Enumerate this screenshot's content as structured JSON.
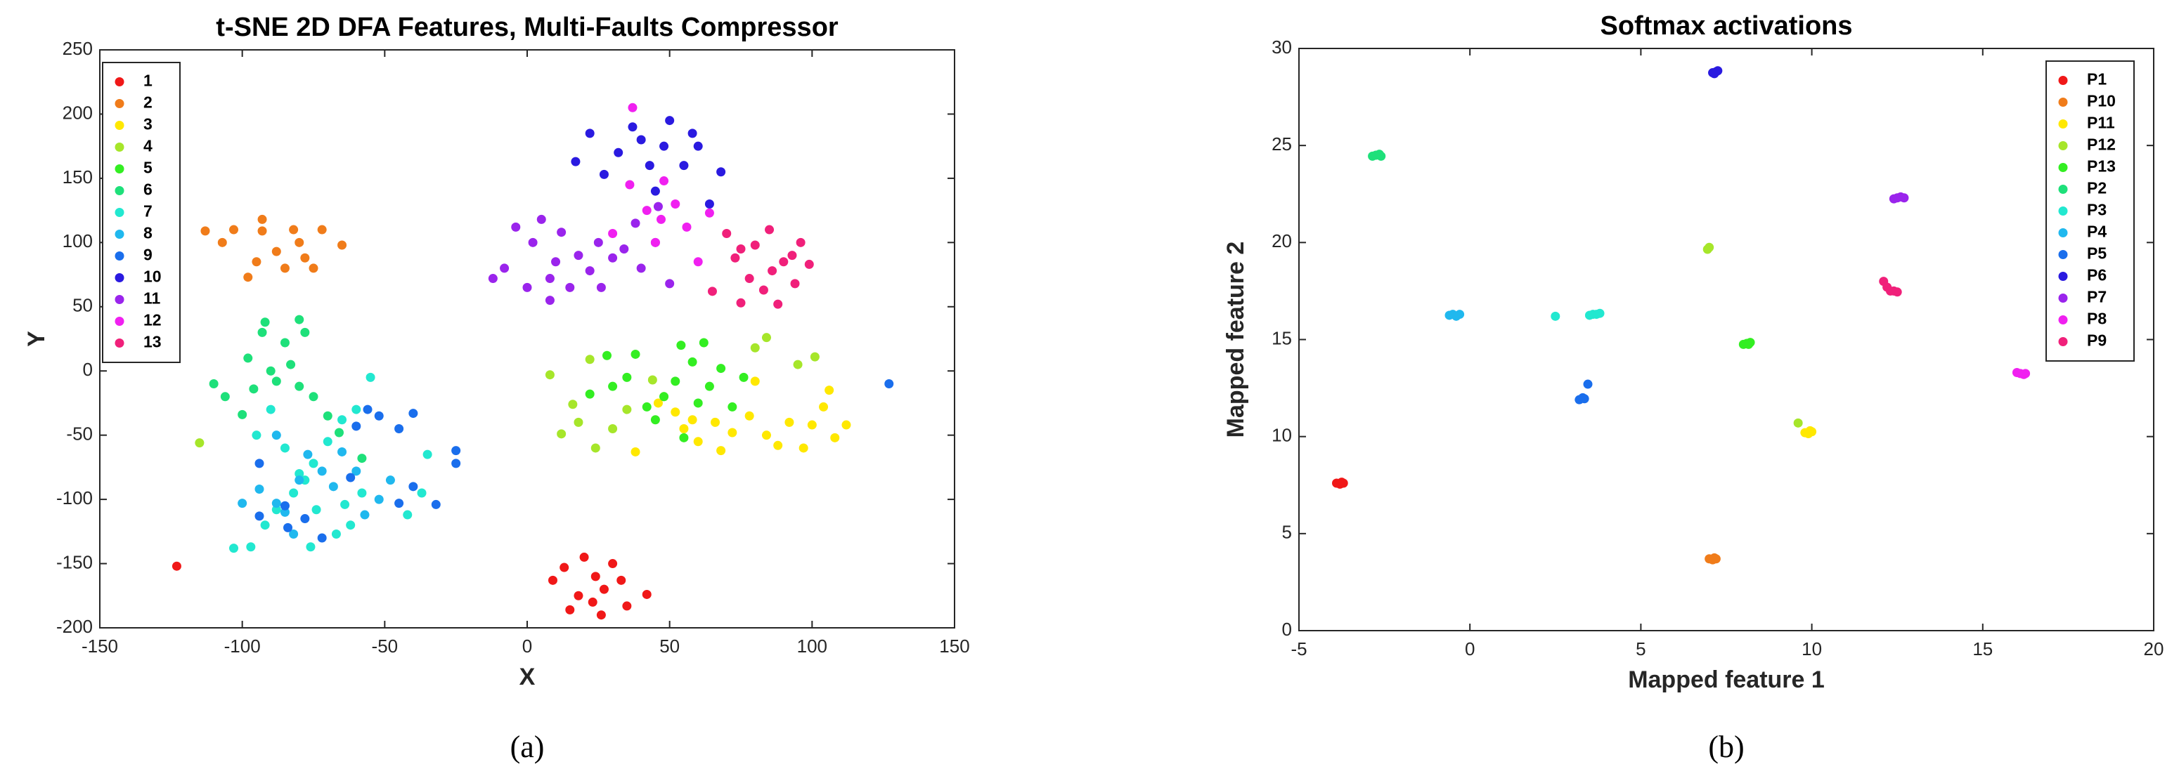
{
  "chart_data": [
    {
      "type": "scatter",
      "title": "t-SNE 2D DFA Features, Multi-Faults Compressor",
      "x_label": "X",
      "y_label": "Y",
      "caption": "(a)",
      "xlim": [
        -150,
        150
      ],
      "ylim": [
        -200,
        250
      ],
      "xticks": [
        -150,
        -100,
        -50,
        0,
        50,
        100,
        150
      ],
      "yticks": [
        -200,
        -150,
        -100,
        -50,
        0,
        50,
        100,
        150,
        200,
        250
      ],
      "legend": "upper left",
      "series": [
        {
          "name": "1",
          "color": "#f01818",
          "x": [
            -123,
            9,
            13,
            18,
            20,
            15,
            24,
            27,
            30,
            33,
            35,
            42,
            23,
            26
          ],
          "y": [
            -152,
            -163,
            -153,
            -175,
            -145,
            -186,
            -160,
            -170,
            -150,
            -163,
            -183,
            -174,
            -180,
            -190
          ]
        },
        {
          "name": "2",
          "color": "#f07c1a",
          "x": [
            -113,
            -107,
            -103,
            -98,
            -95,
            -93,
            -88,
            -85,
            -82,
            -80,
            -78,
            -75,
            -72,
            -65,
            -93
          ],
          "y": [
            109,
            100,
            110,
            73,
            85,
            118,
            93,
            80,
            110,
            100,
            88,
            80,
            110,
            98,
            109
          ]
        },
        {
          "name": "3",
          "color": "#ffe800",
          "x": [
            38,
            52,
            55,
            60,
            66,
            68,
            72,
            78,
            80,
            84,
            88,
            92,
            97,
            100,
            104,
            108,
            112,
            106,
            46,
            58
          ],
          "y": [
            -63,
            -32,
            -45,
            -55,
            -40,
            -62,
            -48,
            -35,
            -8,
            -50,
            -58,
            -40,
            -60,
            -42,
            -28,
            -52,
            -42,
            -15,
            -25,
            -38
          ]
        },
        {
          "name": "4",
          "color": "#a6e62a",
          "x": [
            -115,
            8,
            12,
            16,
            22,
            24,
            30,
            35,
            44,
            48,
            84,
            80,
            95,
            101,
            18
          ],
          "y": [
            -56,
            -3,
            -49,
            -26,
            9,
            -60,
            -45,
            -30,
            -7,
            -20,
            26,
            18,
            5,
            11,
            -40
          ]
        },
        {
          "name": "5",
          "color": "#33ee22",
          "x": [
            22,
            28,
            30,
            35,
            38,
            42,
            48,
            52,
            54,
            58,
            60,
            64,
            68,
            72,
            76,
            62,
            45,
            55
          ],
          "y": [
            -18,
            12,
            -12,
            -5,
            13,
            -28,
            -20,
            -8,
            20,
            7,
            -25,
            -12,
            2,
            -28,
            -5,
            22,
            -38,
            -52
          ]
        },
        {
          "name": "6",
          "color": "#1ee07a",
          "x": [
            -110,
            -106,
            -100,
            -96,
            -93,
            -92,
            -88,
            -85,
            -80,
            -78,
            -75,
            -70,
            -66,
            -58,
            -80,
            -90,
            -98,
            -83
          ],
          "y": [
            -10,
            -20,
            -34,
            -14,
            30,
            38,
            -8,
            22,
            40,
            30,
            -20,
            -35,
            -48,
            -68,
            -12,
            0,
            10,
            5
          ]
        },
        {
          "name": "7",
          "color": "#22e8d0",
          "x": [
            -55,
            -60,
            -65,
            -70,
            -75,
            -78,
            -82,
            -88,
            -92,
            -103,
            -97,
            -76,
            -67,
            -74,
            -64,
            -58,
            -80,
            -85,
            -90,
            -42,
            -37,
            -35,
            -62,
            -95
          ],
          "y": [
            -5,
            -30,
            -38,
            -55,
            -72,
            -85,
            -95,
            -108,
            -120,
            -138,
            -137,
            -137,
            -127,
            -108,
            -104,
            -95,
            -80,
            -60,
            -30,
            -112,
            -95,
            -65,
            -120,
            -50
          ]
        },
        {
          "name": "8",
          "color": "#20b8ee",
          "x": [
            -100,
            -94,
            -88,
            -85,
            -82,
            -80,
            -77,
            -72,
            -68,
            -65,
            -57,
            -52,
            -48,
            -88,
            -60
          ],
          "y": [
            -103,
            -92,
            -103,
            -110,
            -127,
            -85,
            -65,
            -78,
            -90,
            -63,
            -112,
            -100,
            -85,
            -50,
            -78
          ]
        },
        {
          "name": "9",
          "color": "#1a6eec",
          "x": [
            -94,
            -94,
            -84,
            -78,
            -60,
            -56,
            -52,
            -45,
            -40,
            -45,
            -40,
            -32,
            -25,
            -25,
            -85,
            -62,
            -72,
            127
          ],
          "y": [
            -72,
            -113,
            -122,
            -115,
            -43,
            -30,
            -35,
            -45,
            -33,
            -103,
            -90,
            -104,
            -62,
            -72,
            -105,
            -83,
            -130,
            -10
          ]
        },
        {
          "name": "10",
          "color": "#2a1ae0",
          "x": [
            17,
            22,
            27,
            32,
            37,
            40,
            43,
            48,
            50,
            55,
            58,
            60,
            64,
            68,
            45
          ],
          "y": [
            163,
            185,
            153,
            170,
            190,
            180,
            160,
            175,
            195,
            160,
            185,
            175,
            130,
            155,
            140
          ]
        },
        {
          "name": "11",
          "color": "#9a24ec",
          "x": [
            -12,
            -8,
            -4,
            0,
            2,
            5,
            8,
            10,
            12,
            15,
            18,
            22,
            25,
            26,
            30,
            34,
            38,
            40,
            45,
            50,
            46,
            8
          ],
          "y": [
            72,
            80,
            112,
            65,
            100,
            118,
            55,
            85,
            108,
            65,
            90,
            78,
            100,
            65,
            88,
            95,
            115,
            80,
            100,
            68,
            128,
            72
          ]
        },
        {
          "name": "12",
          "color": "#f020f0",
          "x": [
            37,
            36,
            42,
            45,
            48,
            52,
            56,
            60,
            64,
            47,
            30
          ],
          "y": [
            205,
            145,
            125,
            100,
            148,
            130,
            112,
            85,
            123,
            118,
            107
          ]
        },
        {
          "name": "13",
          "color": "#f0207a",
          "x": [
            65,
            70,
            73,
            75,
            75,
            78,
            80,
            83,
            85,
            86,
            88,
            90,
            94,
            96,
            99,
            93
          ],
          "y": [
            62,
            107,
            88,
            95,
            53,
            72,
            98,
            63,
            110,
            78,
            52,
            85,
            68,
            100,
            83,
            90
          ]
        }
      ]
    },
    {
      "type": "scatter",
      "title": "Softmax activations",
      "x_label": "Mapped feature 1",
      "y_label": "Mapped feature 2",
      "caption": "(b)",
      "xlim": [
        -5,
        20
      ],
      "ylim": [
        0,
        30
      ],
      "xticks": [
        -5,
        0,
        5,
        10,
        15,
        20
      ],
      "yticks": [
        0,
        5,
        10,
        15,
        20,
        25,
        30
      ],
      "legend": "upper right",
      "series": [
        {
          "name": "P1",
          "color": "#f01818",
          "x": [
            -3.9,
            -3.8,
            -3.7,
            -3.75
          ],
          "y": [
            7.6,
            7.55,
            7.6,
            7.65
          ]
        },
        {
          "name": "P10",
          "color": "#f07c1a",
          "x": [
            7.0,
            7.1,
            7.2,
            7.15
          ],
          "y": [
            3.7,
            3.65,
            3.7,
            3.75
          ]
        },
        {
          "name": "P11",
          "color": "#ffe800",
          "x": [
            9.8,
            9.9,
            10.0,
            9.95
          ],
          "y": [
            10.2,
            10.15,
            10.25,
            10.3
          ]
        },
        {
          "name": "P12",
          "color": "#a6e62a",
          "x": [
            6.95,
            7.0,
            9.6
          ],
          "y": [
            19.65,
            19.75,
            10.7
          ]
        },
        {
          "name": "P13",
          "color": "#33ee22",
          "x": [
            8.0,
            8.1,
            8.2,
            8.15
          ],
          "y": [
            14.75,
            14.8,
            14.85,
            14.75
          ]
        },
        {
          "name": "P2",
          "color": "#1ee07a",
          "x": [
            -2.85,
            -2.75,
            -2.65,
            -2.6
          ],
          "y": [
            24.45,
            24.5,
            24.55,
            24.45
          ]
        },
        {
          "name": "P3",
          "color": "#22e8d0",
          "x": [
            2.5,
            3.5,
            3.6,
            3.7,
            3.8
          ],
          "y": [
            16.2,
            16.25,
            16.3,
            16.3,
            16.35
          ]
        },
        {
          "name": "P4",
          "color": "#20b8ee",
          "x": [
            -0.6,
            -0.5,
            -0.4,
            -0.3
          ],
          "y": [
            16.25,
            16.3,
            16.2,
            16.3
          ]
        },
        {
          "name": "P5",
          "color": "#1a6eec",
          "x": [
            3.2,
            3.3,
            3.35,
            3.45
          ],
          "y": [
            11.9,
            12.0,
            11.95,
            12.7
          ]
        },
        {
          "name": "P6",
          "color": "#2a1ae0",
          "x": [
            7.1,
            7.2,
            7.25,
            7.15
          ],
          "y": [
            28.75,
            28.8,
            28.85,
            28.7
          ]
        },
        {
          "name": "P7",
          "color": "#9a24ec",
          "x": [
            12.4,
            12.5,
            12.6,
            12.7
          ],
          "y": [
            22.25,
            22.3,
            22.35,
            22.3
          ]
        },
        {
          "name": "P8",
          "color": "#f020f0",
          "x": [
            16.0,
            16.1,
            16.2,
            16.25
          ],
          "y": [
            13.3,
            13.25,
            13.2,
            13.25
          ]
        },
        {
          "name": "P9",
          "color": "#f0207a",
          "x": [
            12.1,
            12.2,
            12.3,
            12.4,
            12.5
          ],
          "y": [
            18.0,
            17.7,
            17.5,
            17.5,
            17.45
          ]
        }
      ]
    }
  ]
}
